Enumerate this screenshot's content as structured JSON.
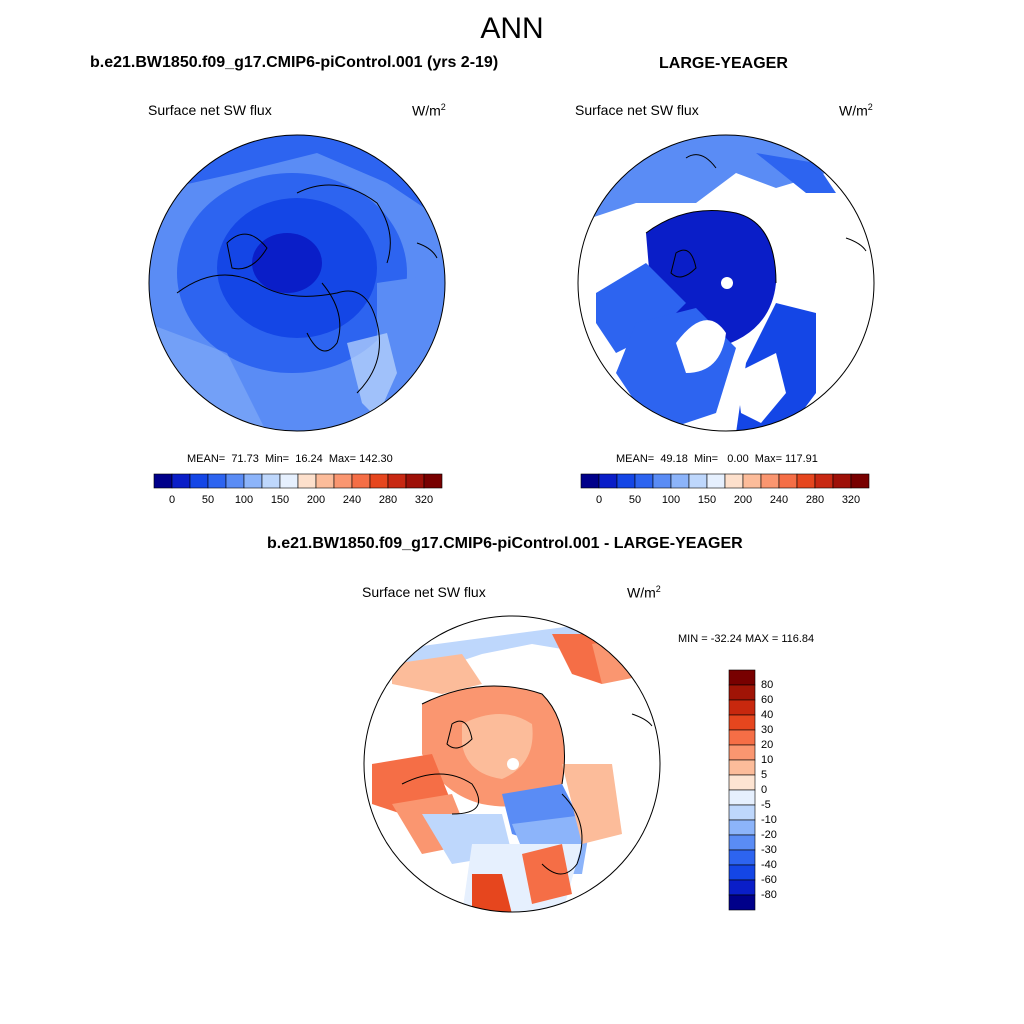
{
  "main_title": "ANN",
  "panels": [
    {
      "title": "b.e21.BW1850.f09_g17.CMIP6-piControl.001 (yrs 2-19)",
      "variable": "Surface net SW flux",
      "units_base": "W/m",
      "units_exp": "2",
      "stats": "MEAN=  71.73  Min=  16.24  Max= 142.30",
      "colorbar_ticks": [
        "0",
        "50",
        "100",
        "150",
        "200",
        "240",
        "280",
        "320"
      ]
    },
    {
      "title": "LARGE-YEAGER",
      "variable": "Surface net SW flux",
      "units_base": "W/m",
      "units_exp": "2",
      "stats": "MEAN=  49.18  Min=   0.00  Max= 117.91",
      "colorbar_ticks": [
        "0",
        "50",
        "100",
        "150",
        "200",
        "240",
        "280",
        "320"
      ]
    },
    {
      "title": "b.e21.BW1850.f09_g17.CMIP6-piControl.001 - LARGE-YEAGER",
      "variable": "Surface net SW flux",
      "units_base": "W/m",
      "units_exp": "2",
      "stats": "MIN = -32.24 MAX = 116.84",
      "colorbar_ticks": [
        "80",
        "60",
        "40",
        "30",
        "20",
        "10",
        "5",
        "0",
        "-5",
        "-10",
        "-20",
        "-30",
        "-40",
        "-60",
        "-80"
      ]
    }
  ],
  "colors": {
    "abs_scale": [
      "#00008a",
      "#0a1ec8",
      "#1446e6",
      "#2d64f0",
      "#5a8cf5",
      "#8cb4fa",
      "#bed7fc",
      "#e6f0fe",
      "#fde0cc",
      "#fcbc9a",
      "#fa9670",
      "#f56e46",
      "#e6461e",
      "#c82812",
      "#9e1008",
      "#780000"
    ],
    "diff_scale": [
      "#780000",
      "#a01406",
      "#c8280e",
      "#e6461e",
      "#f56e46",
      "#fa9670",
      "#fcbc9a",
      "#fde4d2",
      "#e6f0fe",
      "#bed7fc",
      "#8cb4fa",
      "#5a8cf5",
      "#2d64f0",
      "#1446e6",
      "#0a1ec8",
      "#00008a"
    ]
  }
}
